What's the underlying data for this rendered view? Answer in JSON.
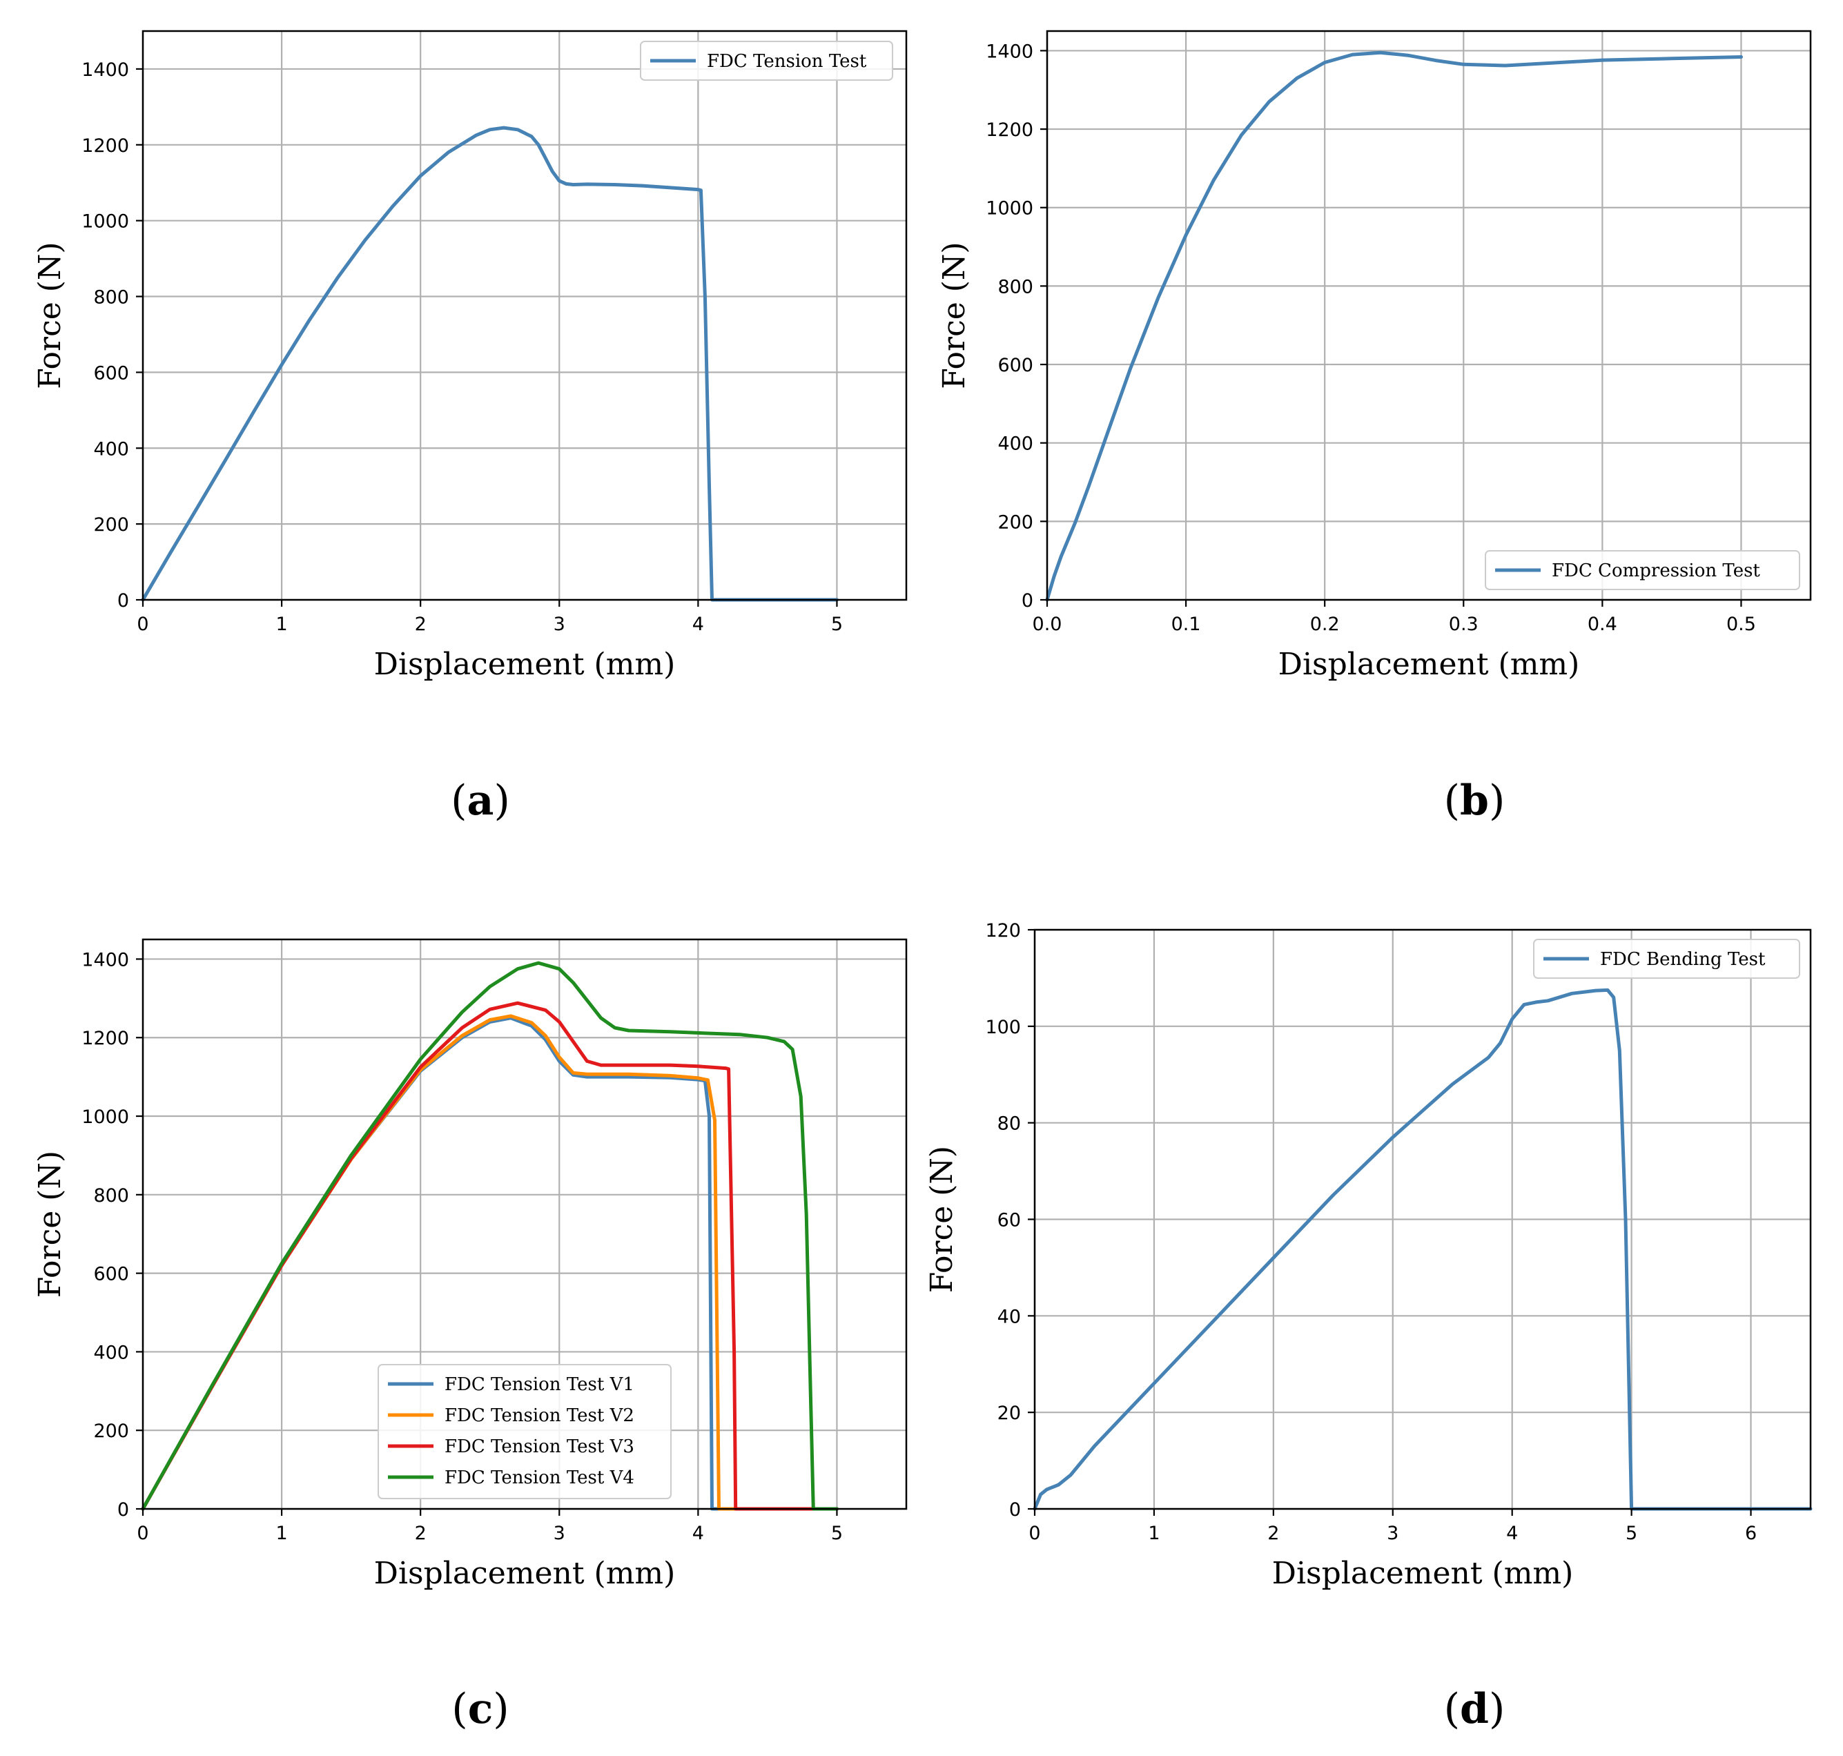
{
  "chart_data": [
    {
      "id": "a",
      "type": "line",
      "panel_label": "a",
      "xlabel": "Displacement (mm)",
      "ylabel": "Force (N)",
      "xlim": [
        0,
        5.5
      ],
      "ylim": [
        0,
        1500
      ],
      "xticks": [
        0,
        1,
        2,
        3,
        4,
        5
      ],
      "yticks": [
        0,
        200,
        400,
        600,
        800,
        1000,
        1200,
        1400
      ],
      "grid": true,
      "legend_position": "top-right",
      "series": [
        {
          "name": "FDC Tension Test",
          "color": "#4682b4",
          "x": [
            0,
            0.2,
            0.4,
            0.6,
            0.8,
            1.0,
            1.2,
            1.4,
            1.6,
            1.8,
            2.0,
            2.2,
            2.4,
            2.5,
            2.6,
            2.7,
            2.8,
            2.85,
            2.9,
            2.95,
            3.0,
            3.05,
            3.1,
            3.2,
            3.4,
            3.6,
            3.8,
            4.0,
            4.02,
            4.05,
            4.08,
            4.1,
            4.3,
            4.6,
            5.0
          ],
          "y": [
            0,
            125,
            248,
            372,
            497,
            620,
            738,
            848,
            948,
            1038,
            1118,
            1180,
            1225,
            1240,
            1245,
            1240,
            1222,
            1200,
            1165,
            1130,
            1105,
            1097,
            1095,
            1096,
            1095,
            1092,
            1087,
            1082,
            1080,
            800,
            300,
            0,
            0,
            0,
            0
          ]
        }
      ]
    },
    {
      "id": "b",
      "type": "line",
      "panel_label": "b",
      "xlabel": "Displacement (mm)",
      "ylabel": "Force (N)",
      "xlim": [
        0,
        0.55
      ],
      "ylim": [
        0,
        1450
      ],
      "xticks": [
        0.0,
        0.1,
        0.2,
        0.3,
        0.4,
        0.5
      ],
      "ytick_labels": [
        "0",
        "200",
        "400",
        "600",
        "800",
        "1000",
        "1200",
        "1400"
      ],
      "xtick_labels": [
        "0.0",
        "0.1",
        "0.2",
        "0.3",
        "0.4",
        "0.5"
      ],
      "yticks": [
        0,
        200,
        400,
        600,
        800,
        1000,
        1200,
        1400
      ],
      "grid": true,
      "legend_position": "bottom-right",
      "series": [
        {
          "name": "FDC Compression Test",
          "color": "#4682b4",
          "x": [
            0,
            0.005,
            0.01,
            0.02,
            0.03,
            0.04,
            0.05,
            0.06,
            0.07,
            0.08,
            0.09,
            0.1,
            0.12,
            0.14,
            0.16,
            0.18,
            0.2,
            0.22,
            0.24,
            0.26,
            0.28,
            0.3,
            0.33,
            0.36,
            0.4,
            0.45,
            0.5
          ],
          "y": [
            0,
            60,
            110,
            195,
            290,
            390,
            490,
            590,
            680,
            770,
            850,
            930,
            1070,
            1185,
            1270,
            1330,
            1370,
            1390,
            1395,
            1388,
            1375,
            1365,
            1362,
            1368,
            1376,
            1380,
            1384
          ]
        }
      ]
    },
    {
      "id": "c",
      "type": "line",
      "panel_label": "c",
      "xlabel": "Displacement (mm)",
      "ylabel": "Force (N)",
      "xlim": [
        0,
        5.5
      ],
      "ylim": [
        0,
        1450
      ],
      "xticks": [
        0,
        1,
        2,
        3,
        4,
        5
      ],
      "yticks": [
        0,
        200,
        400,
        600,
        800,
        1000,
        1200,
        1400
      ],
      "grid": true,
      "legend_position": "bottom-center",
      "series": [
        {
          "name": "FDC Tension Test V1",
          "color": "#4682b4",
          "x": [
            0,
            0.5,
            1.0,
            1.5,
            2.0,
            2.3,
            2.5,
            2.65,
            2.8,
            2.9,
            3.0,
            3.1,
            3.2,
            3.5,
            3.8,
            4.0,
            4.05,
            4.08,
            4.1,
            4.3,
            5.0
          ],
          "y": [
            0,
            312,
            620,
            890,
            1115,
            1200,
            1240,
            1250,
            1230,
            1195,
            1140,
            1105,
            1100,
            1100,
            1098,
            1093,
            1090,
            1000,
            0,
            0,
            0
          ]
        },
        {
          "name": "FDC Tension Test V2",
          "color": "#ff8c00",
          "x": [
            0,
            0.5,
            1.0,
            1.5,
            2.0,
            2.3,
            2.5,
            2.65,
            2.8,
            2.9,
            3.0,
            3.1,
            3.2,
            3.5,
            3.8,
            4.0,
            4.07,
            4.12,
            4.15,
            4.3,
            5.0
          ],
          "y": [
            0,
            312,
            620,
            890,
            1118,
            1205,
            1245,
            1255,
            1238,
            1205,
            1150,
            1110,
            1107,
            1107,
            1103,
            1097,
            1092,
            990,
            0,
            0,
            0
          ]
        },
        {
          "name": "FDC Tension Test V3",
          "color": "#e31a1c",
          "x": [
            0,
            0.5,
            1.0,
            1.5,
            2.0,
            2.3,
            2.5,
            2.7,
            2.9,
            3.0,
            3.1,
            3.2,
            3.3,
            3.5,
            3.8,
            4.0,
            4.2,
            4.22,
            4.26,
            4.27,
            4.5,
            5.0
          ],
          "y": [
            0,
            312,
            620,
            892,
            1125,
            1225,
            1272,
            1288,
            1270,
            1240,
            1190,
            1140,
            1130,
            1130,
            1130,
            1127,
            1122,
            1120,
            400,
            0,
            0,
            0
          ]
        },
        {
          "name": "FDC Tension Test V4",
          "color": "#1e8c1e",
          "x": [
            0,
            0.5,
            1.0,
            1.5,
            2.0,
            2.3,
            2.5,
            2.7,
            2.85,
            3.0,
            3.1,
            3.2,
            3.3,
            3.4,
            3.5,
            3.8,
            4.0,
            4.3,
            4.5,
            4.62,
            4.68,
            4.74,
            4.78,
            4.81,
            4.83,
            5.0
          ],
          "y": [
            0,
            315,
            625,
            900,
            1145,
            1265,
            1330,
            1375,
            1390,
            1375,
            1340,
            1295,
            1250,
            1225,
            1218,
            1215,
            1212,
            1208,
            1200,
            1190,
            1170,
            1050,
            750,
            300,
            0,
            0
          ]
        }
      ]
    },
    {
      "id": "d",
      "type": "line",
      "panel_label": "d",
      "xlabel": "Displacement (mm)",
      "ylabel": "Force (N)",
      "xlim": [
        0,
        6.5
      ],
      "ylim": [
        0,
        120
      ],
      "xticks": [
        0,
        1,
        2,
        3,
        4,
        5,
        6
      ],
      "yticks": [
        0,
        20,
        40,
        60,
        80,
        100,
        120
      ],
      "grid": true,
      "legend_position": "top-right",
      "series": [
        {
          "name": "FDC Bending Test",
          "color": "#4682b4",
          "x": [
            0,
            0.05,
            0.1,
            0.2,
            0.3,
            0.5,
            1.0,
            1.5,
            2.0,
            2.5,
            3.0,
            3.5,
            3.8,
            3.9,
            4.0,
            4.1,
            4.2,
            4.3,
            4.5,
            4.7,
            4.8,
            4.85,
            4.9,
            4.95,
            5.0,
            5.5,
            6.0,
            6.5
          ],
          "y": [
            0,
            3,
            4,
            5,
            7,
            13,
            26,
            39,
            52,
            65,
            77,
            88,
            93.5,
            96.5,
            101.5,
            104.5,
            105,
            105.3,
            106.8,
            107.4,
            107.5,
            106,
            95,
            60,
            0,
            0,
            0,
            0
          ]
        }
      ]
    }
  ]
}
